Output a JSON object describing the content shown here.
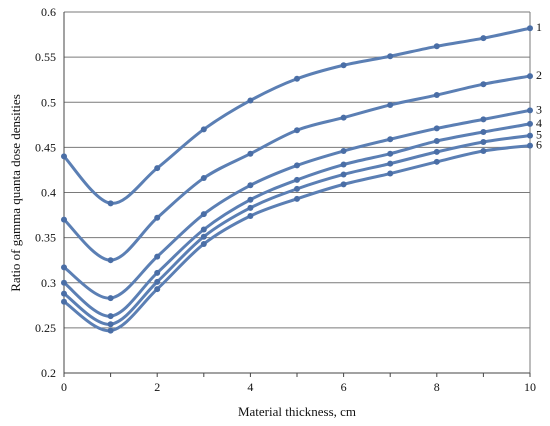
{
  "chart_data": {
    "type": "line",
    "title": "",
    "xlabel": "Material thickness, cm",
    "ylabel": "Ratio of gamma quanta dose densities",
    "xlim": [
      0,
      10
    ],
    "ylim": [
      0.2,
      0.6
    ],
    "x_ticks": [
      "0",
      "2",
      "4",
      "6",
      "8",
      "10"
    ],
    "y_ticks": [
      "0.2",
      "0.25",
      "0.3",
      "0.35",
      "0.4",
      "0.45",
      "0.5",
      "0.55",
      "0.6"
    ],
    "grid": "horizontal",
    "legend": "labels at right end of lines",
    "x": [
      0,
      1,
      2,
      3,
      4,
      5,
      6,
      7,
      8,
      9,
      10
    ],
    "series": [
      {
        "name": "1",
        "values": [
          0.44,
          0.388,
          0.427,
          0.47,
          0.502,
          0.526,
          0.541,
          0.551,
          0.562,
          0.571,
          0.582
        ]
      },
      {
        "name": "2",
        "values": [
          0.37,
          0.325,
          0.372,
          0.416,
          0.443,
          0.469,
          0.483,
          0.497,
          0.508,
          0.52,
          0.529
        ]
      },
      {
        "name": "3",
        "values": [
          0.317,
          0.283,
          0.329,
          0.376,
          0.408,
          0.43,
          0.446,
          0.459,
          0.471,
          0.481,
          0.491
        ]
      },
      {
        "name": "4",
        "values": [
          0.3,
          0.263,
          0.311,
          0.359,
          0.392,
          0.414,
          0.431,
          0.443,
          0.457,
          0.467,
          0.476
        ]
      },
      {
        "name": "5",
        "values": [
          0.288,
          0.254,
          0.301,
          0.351,
          0.383,
          0.404,
          0.42,
          0.432,
          0.445,
          0.456,
          0.463
        ]
      },
      {
        "name": "6",
        "values": [
          0.279,
          0.247,
          0.293,
          0.343,
          0.374,
          0.393,
          0.409,
          0.421,
          0.434,
          0.446,
          0.452
        ]
      }
    ],
    "colors": {
      "line": "#5b7fb4",
      "marker": "#4a6ea6",
      "grid": "#7a7a7a",
      "axis": "#444444"
    }
  }
}
